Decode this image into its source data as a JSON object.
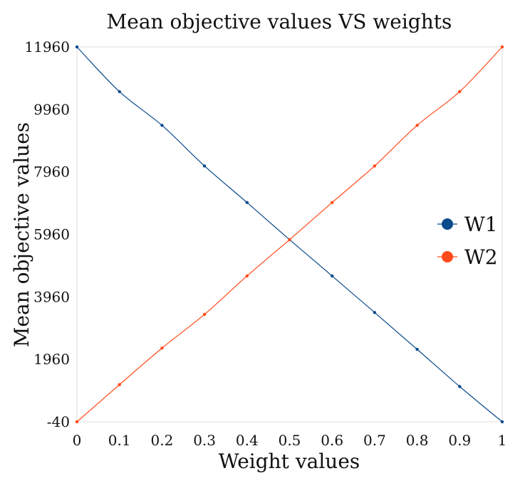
{
  "chart_data": {
    "type": "line",
    "title": "Mean objective values VS weights",
    "xlabel": "Weight values",
    "ylabel": "Mean objective values",
    "x": [
      0,
      0.1,
      0.2,
      0.3,
      0.4,
      0.5,
      0.6,
      0.7,
      0.8,
      0.9,
      1
    ],
    "xlim": [
      0,
      1
    ],
    "ylim": [
      -40,
      11960
    ],
    "x_ticks": [
      "0",
      "0.1",
      "0.2",
      "0.3",
      "0.4",
      "0.5",
      "0.6",
      "0.7",
      "0.8",
      "0.9",
      "1"
    ],
    "y_ticks": [
      "-40",
      "1960",
      "3960",
      "5960",
      "7960",
      "9960",
      "11960"
    ],
    "grid": false,
    "legend_position": "right",
    "series": [
      {
        "name": "W1",
        "color": "#0b4a8b",
        "values": [
          11960,
          10530,
          9450,
          8150,
          6980,
          5790,
          4630,
          3460,
          2280,
          1090,
          -40
        ]
      },
      {
        "name": "W2",
        "color": "#ff4a1a",
        "values": [
          -40,
          1150,
          2320,
          3400,
          4630,
          5790,
          6980,
          8150,
          9450,
          10530,
          11960
        ]
      }
    ]
  }
}
